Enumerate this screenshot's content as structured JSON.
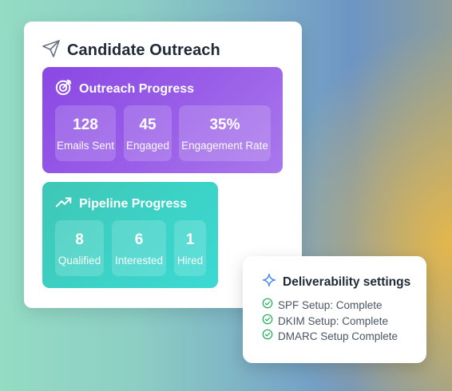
{
  "main_card": {
    "title": "Candidate Outreach",
    "icon": "send-icon"
  },
  "outreach": {
    "title": "Outreach Progress",
    "icon": "target-icon",
    "stats": [
      {
        "value": "128",
        "label": "Emails Sent"
      },
      {
        "value": "45",
        "label": "Engaged"
      },
      {
        "value": "35%",
        "label": "Engagement Rate"
      }
    ],
    "color": "#9556e6"
  },
  "pipeline": {
    "title": "Pipeline Progress",
    "icon": "trending-up-icon",
    "stats": [
      {
        "value": "8",
        "label": "Qualified"
      },
      {
        "value": "6",
        "label": "Interested"
      },
      {
        "value": "1",
        "label": "Hired"
      }
    ],
    "color": "#3dcfc2"
  },
  "deliverability": {
    "title": "Deliverability settings",
    "icon": "sparkle-icon",
    "items": [
      {
        "label": "SPF Setup: Complete",
        "icon": "check-circle-icon"
      },
      {
        "label": "DKIM Setup: Complete",
        "icon": "check-circle-icon"
      },
      {
        "label": "DMARC Setup Complete",
        "icon": "check-circle-icon"
      }
    ],
    "check_color": "#22a85a"
  }
}
